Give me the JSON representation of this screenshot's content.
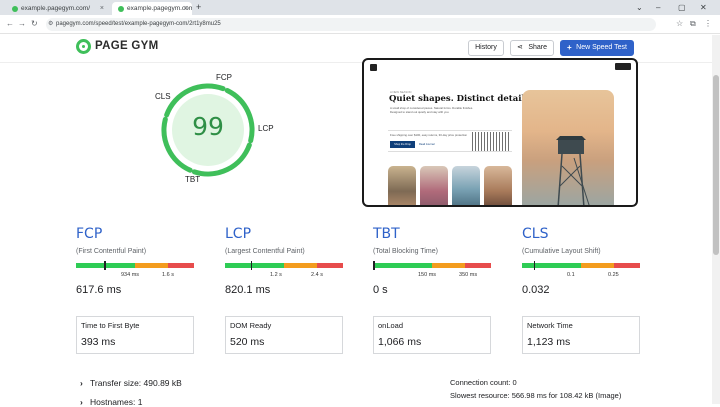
{
  "browser": {
    "tabs": [
      {
        "label": "example.pagegym.com/",
        "close": "×"
      },
      {
        "label": "example.pagegym.com/",
        "close": "×"
      }
    ],
    "new_tab": "+",
    "window_controls": [
      "⌄",
      "–",
      "▢",
      "✕"
    ],
    "nav": {
      "back": "←",
      "forward": "→",
      "reload": "↻"
    },
    "url": "pagegym.com/speed/test/example-pagegym-com/2rt1y8mu25",
    "icons": [
      "star-icon",
      "puzzle-icon",
      "menu-icon"
    ]
  },
  "header": {
    "brand": "PAGE GYM",
    "buttons": {
      "history": "History",
      "share": "Share",
      "new_test": "New Speed Test"
    }
  },
  "gauge": {
    "score": "99",
    "score_value": 99,
    "labels": {
      "fcp": "FCP",
      "cls": "CLS",
      "lcp": "LCP",
      "tbt": "TBT"
    },
    "color": "#3fbf5a"
  },
  "preview": {
    "kicker": "A NEW SEASON",
    "headline": "Quiet shapes. Distinct details.",
    "body": "A small shop of considered pieces. Natural forms. Durable finishes. Designed to stand out quietly and stay with you.",
    "sub_text": "Free shipping over $100, easy returns, 30-day price protection",
    "shop_button": "Shop the Drop",
    "shop_link": "Read Journal"
  },
  "metrics": [
    {
      "key": "fcp",
      "title": "FCP",
      "subtitle": "(First Contentful Paint)",
      "ticks": [
        "934 ms",
        "1.6 s"
      ],
      "value": "617.6 ms",
      "marker_fraction": 0.24
    },
    {
      "key": "lcp",
      "title": "LCP",
      "subtitle": "(Largest Contentful Paint)",
      "ticks": [
        "1.2 s",
        "2.4 s"
      ],
      "value": "820.1 ms",
      "marker_fraction": 0.22
    },
    {
      "key": "tbt",
      "title": "TBT",
      "subtitle": "(Total Blocking Time)",
      "ticks": [
        "150 ms",
        "350 ms"
      ],
      "value": "0 s",
      "marker_fraction": 0.0
    },
    {
      "key": "cls",
      "title": "CLS",
      "subtitle": "(Cumulative Layout Shift)",
      "ticks": [
        "0.1",
        "0.25"
      ],
      "value": "0.032",
      "marker_fraction": 0.1
    }
  ],
  "bar_colors": {
    "good": "#2ecc55",
    "average": "#f39c1e",
    "poor": "#e74c4c"
  },
  "cards": [
    {
      "label": "Time to First Byte",
      "value": "393 ms"
    },
    {
      "label": "DOM Ready",
      "value": "520 ms"
    },
    {
      "label": "onLoad",
      "value": "1,066 ms"
    },
    {
      "label": "Network Time",
      "value": "1,123 ms"
    }
  ],
  "details": {
    "transfer_size": "Transfer size: 490.89 kB",
    "hostnames": "Hostnames: 1",
    "connection_count": "Connection count: 0",
    "slowest_resource": "Slowest resource: 566.98 ms for 108.42 kB (Image)"
  }
}
